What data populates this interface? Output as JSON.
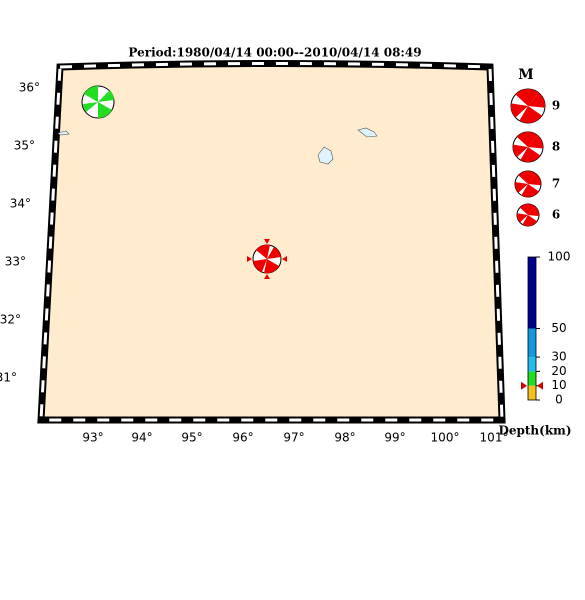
{
  "title": "Period:1980/04/14 00:00--2010/04/14 08:49",
  "lat_labels": [
    "36°",
    "35°",
    "34°",
    "33°",
    "32°",
    "31°"
  ],
  "lon_labels": [
    "93°",
    "94°",
    "95°",
    "96°",
    "97°",
    "98°",
    "99°",
    "100°",
    "101°"
  ],
  "magnitude_legend": {
    "title": "M",
    "magnitudes": [
      9,
      8,
      7,
      6
    ]
  },
  "depth_scale": {
    "title": "Depth(km)",
    "range": [
      0,
      100
    ],
    "ticks": [
      0,
      10,
      20,
      30,
      50,
      100
    ],
    "colors": [
      "#f4c020",
      "#22dd22",
      "#22bbee",
      "#1199dd",
      "#00008f"
    ]
  },
  "event": {
    "depth": 10
  }
}
